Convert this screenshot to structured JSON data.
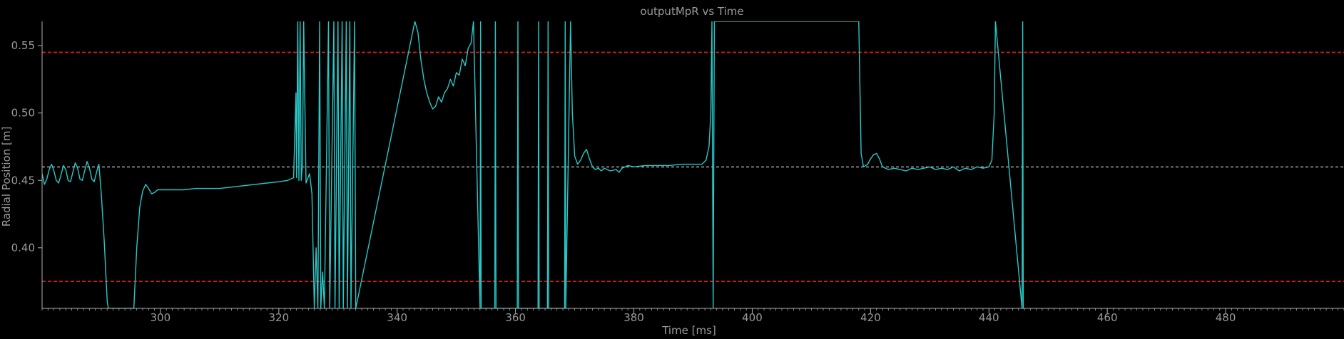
{
  "chart_data": {
    "type": "line",
    "title": "outputMpR vs Time",
    "xlabel": "Time [ms]",
    "ylabel": "Radial Position [m]",
    "xlim": [
      280,
      500
    ],
    "ylim": [
      0.355,
      0.568
    ],
    "x_ticks": [
      300,
      320,
      340,
      360,
      380,
      400,
      420,
      440,
      460,
      480
    ],
    "x_minor_step": 1,
    "y_ticks": [
      0.4,
      0.45,
      0.5,
      0.55
    ],
    "grid": false,
    "background": "#000000",
    "colors": {
      "series": "#29c8c8",
      "limit": "#e01a1a",
      "target": "#ffffff",
      "text": "#9a9a9a",
      "axis": "#b0b0b0"
    },
    "reference_lines": [
      {
        "y": 0.545,
        "style": "dashed",
        "color": "#e01a1a"
      },
      {
        "y": 0.375,
        "style": "dashed",
        "color": "#e01a1a"
      },
      {
        "y": 0.46,
        "style": "dashed",
        "color": "#ffffff"
      }
    ],
    "series": [
      {
        "points": [
          [
            280.0,
            0.455
          ],
          [
            280.4,
            0.447
          ],
          [
            280.8,
            0.451
          ],
          [
            281.2,
            0.458
          ],
          [
            281.6,
            0.462
          ],
          [
            282.0,
            0.457
          ],
          [
            282.4,
            0.45
          ],
          [
            282.8,
            0.448
          ],
          [
            283.2,
            0.454
          ],
          [
            283.6,
            0.461
          ],
          [
            284.0,
            0.458
          ],
          [
            284.4,
            0.45
          ],
          [
            284.8,
            0.449
          ],
          [
            285.2,
            0.456
          ],
          [
            285.6,
            0.463
          ],
          [
            286.0,
            0.459
          ],
          [
            286.4,
            0.451
          ],
          [
            286.8,
            0.45
          ],
          [
            287.2,
            0.457
          ],
          [
            287.6,
            0.464
          ],
          [
            288.0,
            0.459
          ],
          [
            288.4,
            0.451
          ],
          [
            288.8,
            0.449
          ],
          [
            289.2,
            0.456
          ],
          [
            289.6,
            0.462
          ],
          [
            290.0,
            0.44
          ],
          [
            290.5,
            0.405
          ],
          [
            291.0,
            0.36
          ],
          [
            291.2,
            0.355
          ],
          [
            295.5,
            0.355
          ],
          [
            296.0,
            0.4
          ],
          [
            296.5,
            0.43
          ],
          [
            297.0,
            0.442
          ],
          [
            297.5,
            0.447
          ],
          [
            298.0,
            0.444
          ],
          [
            298.5,
            0.44
          ],
          [
            299.0,
            0.441
          ],
          [
            299.5,
            0.443
          ],
          [
            300.0,
            0.443
          ],
          [
            302.0,
            0.443
          ],
          [
            304.0,
            0.443
          ],
          [
            306.0,
            0.444
          ],
          [
            308.0,
            0.444
          ],
          [
            310.0,
            0.444
          ],
          [
            312.0,
            0.445
          ],
          [
            314.0,
            0.446
          ],
          [
            316.0,
            0.447
          ],
          [
            318.0,
            0.448
          ],
          [
            320.0,
            0.449
          ],
          [
            321.5,
            0.45
          ],
          [
            322.5,
            0.452
          ],
          [
            322.9,
            0.515
          ],
          [
            323.0,
            0.452
          ],
          [
            323.2,
            0.568
          ],
          [
            323.4,
            0.45
          ],
          [
            323.6,
            0.568
          ],
          [
            323.8,
            0.45
          ],
          [
            324.0,
            0.462
          ],
          [
            324.2,
            0.568
          ],
          [
            324.6,
            0.448
          ],
          [
            325.2,
            0.455
          ],
          [
            325.6,
            0.44
          ],
          [
            326.0,
            0.355
          ],
          [
            326.3,
            0.4
          ],
          [
            326.6,
            0.355
          ],
          [
            326.9,
            0.568
          ],
          [
            327.1,
            0.355
          ],
          [
            327.4,
            0.382
          ],
          [
            327.7,
            0.355
          ],
          [
            328.4,
            0.568
          ],
          [
            328.6,
            0.355
          ],
          [
            329.3,
            0.568
          ],
          [
            329.5,
            0.355
          ],
          [
            330.0,
            0.568
          ],
          [
            330.2,
            0.355
          ],
          [
            330.7,
            0.568
          ],
          [
            330.9,
            0.355
          ],
          [
            331.4,
            0.568
          ],
          [
            331.6,
            0.355
          ],
          [
            332.0,
            0.568
          ],
          [
            332.2,
            0.355
          ],
          [
            332.8,
            0.568
          ],
          [
            333.0,
            0.355
          ],
          [
            343.0,
            0.568
          ],
          [
            343.5,
            0.56
          ],
          [
            344.0,
            0.54
          ],
          [
            344.5,
            0.525
          ],
          [
            345.0,
            0.515
          ],
          [
            345.5,
            0.508
          ],
          [
            346.0,
            0.503
          ],
          [
            346.5,
            0.505
          ],
          [
            347.0,
            0.512
          ],
          [
            347.5,
            0.508
          ],
          [
            348.0,
            0.515
          ],
          [
            348.5,
            0.518
          ],
          [
            349.0,
            0.525
          ],
          [
            349.5,
            0.52
          ],
          [
            350.0,
            0.53
          ],
          [
            350.5,
            0.528
          ],
          [
            351.0,
            0.54
          ],
          [
            351.5,
            0.535
          ],
          [
            352.0,
            0.548
          ],
          [
            352.5,
            0.552
          ],
          [
            352.9,
            0.568
          ],
          [
            354.0,
            0.355
          ],
          [
            354.1,
            0.568
          ],
          [
            354.2,
            0.355
          ],
          [
            356.5,
            0.355
          ],
          [
            356.6,
            0.568
          ],
          [
            356.7,
            0.355
          ],
          [
            360.3,
            0.355
          ],
          [
            360.4,
            0.568
          ],
          [
            360.5,
            0.355
          ],
          [
            363.8,
            0.355
          ],
          [
            363.9,
            0.568
          ],
          [
            364.0,
            0.355
          ],
          [
            365.4,
            0.355
          ],
          [
            365.5,
            0.568
          ],
          [
            365.6,
            0.355
          ],
          [
            368.3,
            0.355
          ],
          [
            368.4,
            0.568
          ],
          [
            368.5,
            0.355
          ],
          [
            369.3,
            0.568
          ],
          [
            369.6,
            0.5
          ],
          [
            370.0,
            0.468
          ],
          [
            370.5,
            0.462
          ],
          [
            371.0,
            0.465
          ],
          [
            371.5,
            0.47
          ],
          [
            372.0,
            0.473
          ],
          [
            372.5,
            0.466
          ],
          [
            373.0,
            0.46
          ],
          [
            373.5,
            0.458
          ],
          [
            374.0,
            0.459
          ],
          [
            374.5,
            0.457
          ],
          [
            375.0,
            0.459
          ],
          [
            376.0,
            0.457
          ],
          [
            377.0,
            0.458
          ],
          [
            377.5,
            0.456
          ],
          [
            378.0,
            0.459
          ],
          [
            379.0,
            0.461
          ],
          [
            380.0,
            0.46
          ],
          [
            382.0,
            0.461
          ],
          [
            384.0,
            0.461
          ],
          [
            386.0,
            0.461
          ],
          [
            388.0,
            0.462
          ],
          [
            390.0,
            0.462
          ],
          [
            391.5,
            0.462
          ],
          [
            392.2,
            0.465
          ],
          [
            392.7,
            0.475
          ],
          [
            393.0,
            0.5
          ],
          [
            393.2,
            0.568
          ],
          [
            393.4,
            0.355
          ],
          [
            393.6,
            0.568
          ],
          [
            418.0,
            0.568
          ],
          [
            418.4,
            0.47
          ],
          [
            418.8,
            0.46
          ],
          [
            419.5,
            0.462
          ],
          [
            420.0,
            0.466
          ],
          [
            420.5,
            0.469
          ],
          [
            421.0,
            0.47
          ],
          [
            421.5,
            0.466
          ],
          [
            422.0,
            0.46
          ],
          [
            423.0,
            0.458
          ],
          [
            424.0,
            0.459
          ],
          [
            425.0,
            0.458
          ],
          [
            426.0,
            0.457
          ],
          [
            427.0,
            0.459
          ],
          [
            428.0,
            0.458
          ],
          [
            429.0,
            0.459
          ],
          [
            430.0,
            0.46
          ],
          [
            431.0,
            0.458
          ],
          [
            432.0,
            0.459
          ],
          [
            433.0,
            0.458
          ],
          [
            434.0,
            0.46
          ],
          [
            435.0,
            0.457
          ],
          [
            436.0,
            0.459
          ],
          [
            437.0,
            0.458
          ],
          [
            438.0,
            0.46
          ],
          [
            439.0,
            0.459
          ],
          [
            440.0,
            0.46
          ],
          [
            440.5,
            0.465
          ],
          [
            440.9,
            0.5
          ],
          [
            441.1,
            0.568
          ],
          [
            445.6,
            0.355
          ],
          [
            445.7,
            0.568
          ],
          [
            445.8,
            0.355
          ]
        ]
      }
    ]
  }
}
